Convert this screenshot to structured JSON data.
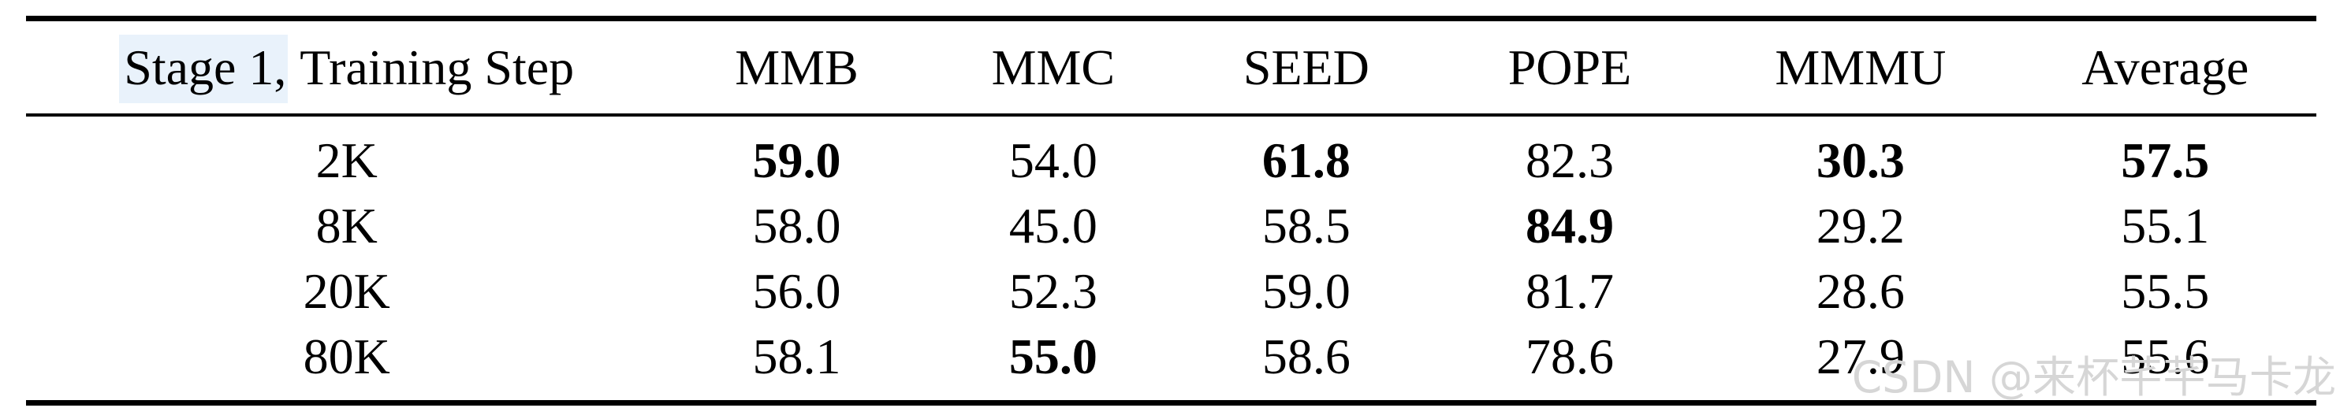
{
  "table": {
    "header": {
      "col1_highlight": "Stage 1,",
      "col1_rest": " Training Step",
      "columns": [
        "MMB",
        "MMC",
        "SEED",
        "POPE",
        "MMMU",
        "Average"
      ]
    },
    "rows": [
      {
        "label": "2K",
        "values": [
          "59.0",
          "54.0",
          "61.8",
          "82.3",
          "30.3",
          "57.5"
        ],
        "bold": [
          true,
          false,
          true,
          false,
          true,
          true
        ]
      },
      {
        "label": "8K",
        "values": [
          "58.0",
          "45.0",
          "58.5",
          "84.9",
          "29.2",
          "55.1"
        ],
        "bold": [
          false,
          false,
          false,
          true,
          false,
          false
        ]
      },
      {
        "label": "20K",
        "values": [
          "56.0",
          "52.3",
          "59.0",
          "81.7",
          "28.6",
          "55.5"
        ],
        "bold": [
          false,
          false,
          false,
          false,
          false,
          false
        ]
      },
      {
        "label": "80K",
        "values": [
          "58.1",
          "55.0",
          "58.6",
          "78.6",
          "27.9",
          "55.6"
        ],
        "bold": [
          false,
          true,
          false,
          false,
          false,
          false
        ]
      }
    ]
  },
  "watermark": {
    "text": "CSDN @来杯芊芊马卡龙"
  },
  "colors": {
    "text": "#000000",
    "rule": "#000000",
    "highlight": "#e9f2fb",
    "watermark": "#d6d6d6"
  }
}
